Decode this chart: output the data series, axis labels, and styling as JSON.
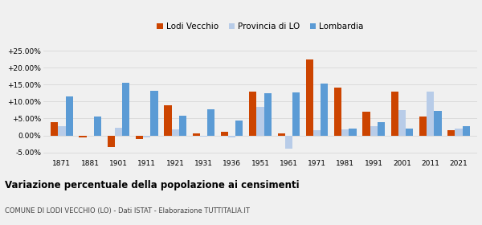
{
  "years": [
    1871,
    1881,
    1901,
    1911,
    1921,
    1931,
    1936,
    1951,
    1961,
    1971,
    1981,
    1991,
    2001,
    2011,
    2021
  ],
  "lodi_vecchio": [
    4.0,
    -0.5,
    -3.5,
    -1.0,
    9.0,
    0.5,
    1.0,
    13.0,
    0.5,
    22.5,
    14.0,
    7.0,
    13.0,
    5.5,
    1.5
  ],
  "provincia_lo": [
    2.8,
    -0.2,
    2.2,
    -0.5,
    1.8,
    -0.3,
    -0.5,
    8.5,
    -4.0,
    1.5,
    1.8,
    2.8,
    7.5,
    13.0,
    2.0
  ],
  "lombardia": [
    11.5,
    5.5,
    15.5,
    13.2,
    5.8,
    7.8,
    4.3,
    12.5,
    12.8,
    15.3,
    2.0,
    4.0,
    2.0,
    7.3,
    2.7
  ],
  "color_lodi": "#cc4400",
  "color_provincia": "#b8cce8",
  "color_lombardia": "#5b9bd5",
  "title": "Variazione percentuale della popolazione ai censimenti",
  "subtitle": "COMUNE DI LODI VECCHIO (LO) - Dati ISTAT - Elaborazione TUTTITALIA.IT",
  "legend_labels": [
    "Lodi Vecchio",
    "Provincia di LO",
    "Lombardia"
  ],
  "ylim": [
    -6.5,
    28
  ],
  "yticks": [
    -5,
    0,
    5,
    10,
    15,
    20,
    25
  ],
  "background_color": "#f0f0f0",
  "grid_color": "#d8d8d8"
}
